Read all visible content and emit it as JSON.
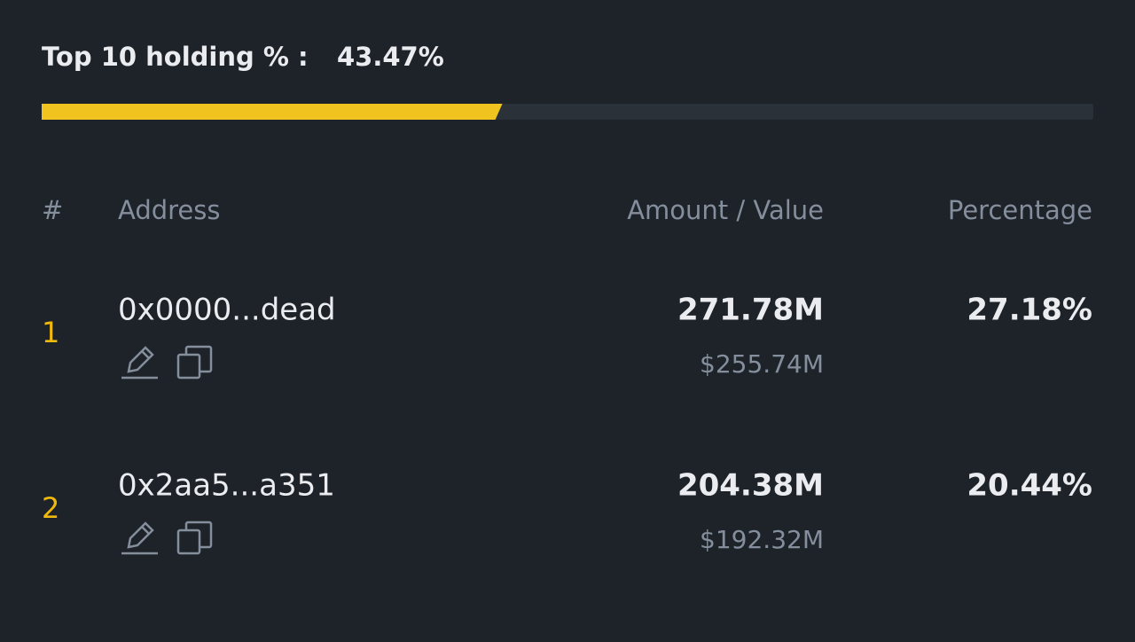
{
  "holding": {
    "label": "Top 10 holding % :",
    "value_label": "43.47%",
    "value": 43.47
  },
  "table": {
    "headers": [
      "#",
      "Address",
      "Amount  /  Value",
      "Percentage"
    ],
    "rows": [
      {
        "rank": "1",
        "address": "0x0000...dead",
        "amount": "271.78M",
        "value": "$255.74M",
        "percentage": "27.18%"
      },
      {
        "rank": "2",
        "address": "0x2aa5...a351",
        "amount": "204.38M",
        "value": "$192.32M",
        "percentage": "20.44%"
      }
    ]
  }
}
